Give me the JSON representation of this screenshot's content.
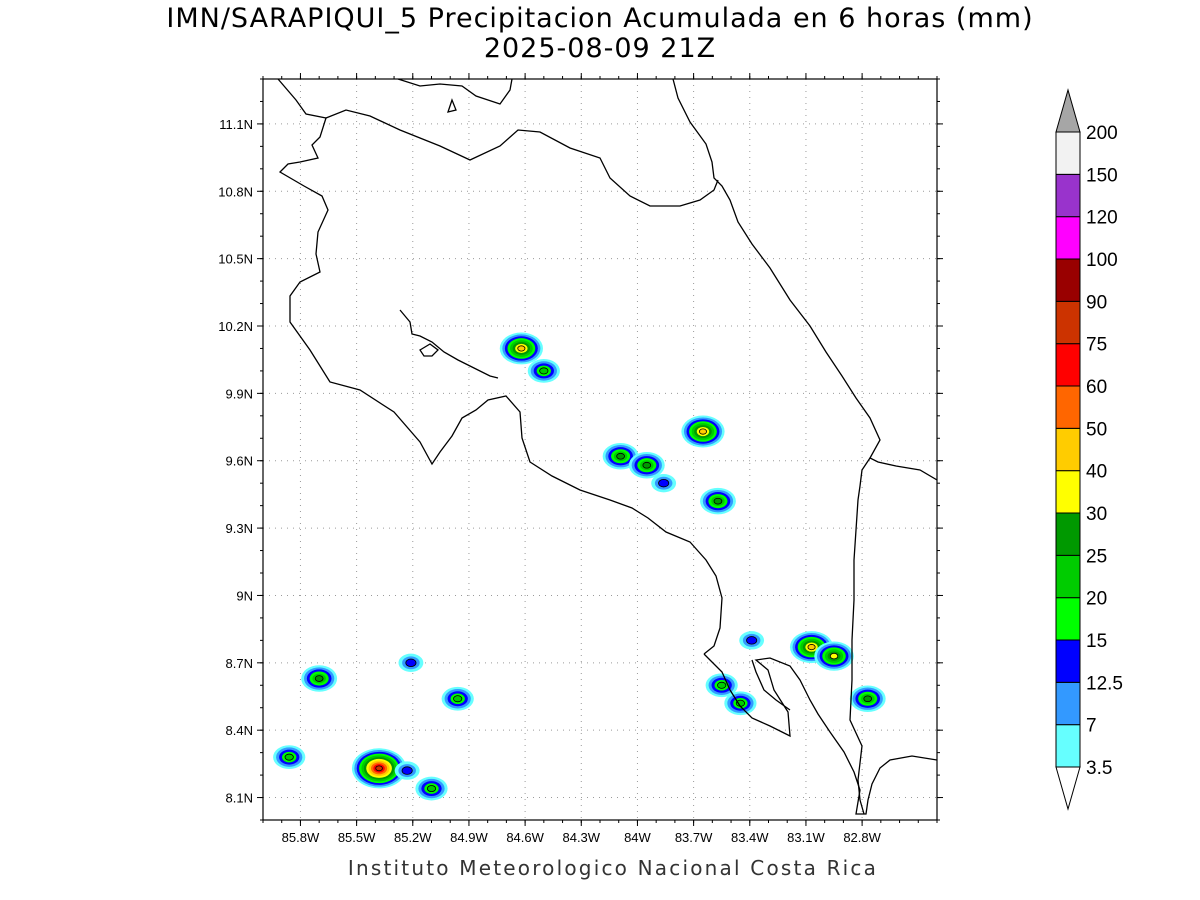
{
  "title": {
    "line1": "IMN/SARAPIQUI_5 Precipitacion Acumulada en 6 horas (mm)",
    "line2": "2025-08-09 21Z"
  },
  "footer": "Instituto Meteorologico Nacional Costa Rica",
  "map": {
    "lon_range": [
      -86.0,
      -82.4
    ],
    "lat_range": [
      8.0,
      11.3
    ],
    "lat_ticks": [
      {
        "value": 11.1,
        "label": "11.1N"
      },
      {
        "value": 10.8,
        "label": "10.8N"
      },
      {
        "value": 10.5,
        "label": "10.5N"
      },
      {
        "value": 10.2,
        "label": "10.2N"
      },
      {
        "value": 9.9,
        "label": "9.9N"
      },
      {
        "value": 9.6,
        "label": "9.6N"
      },
      {
        "value": 9.3,
        "label": "9.3N"
      },
      {
        "value": 9.0,
        "label": "9N"
      },
      {
        "value": 8.7,
        "label": "8.7N"
      },
      {
        "value": 8.4,
        "label": "8.4N"
      },
      {
        "value": 8.1,
        "label": "8.1N"
      }
    ],
    "lon_ticks": [
      {
        "value": -85.8,
        "label": "85.8W"
      },
      {
        "value": -85.5,
        "label": "85.5W"
      },
      {
        "value": -85.2,
        "label": "85.2W"
      },
      {
        "value": -84.9,
        "label": "84.9W"
      },
      {
        "value": -84.6,
        "label": "84.6W"
      },
      {
        "value": -84.3,
        "label": "84.3W"
      },
      {
        "value": -84.0,
        "label": "84W"
      },
      {
        "value": -83.7,
        "label": "83.7W"
      },
      {
        "value": -83.4,
        "label": "83.4W"
      },
      {
        "value": -83.1,
        "label": "83.1W"
      },
      {
        "value": -82.8,
        "label": "82.8W"
      }
    ],
    "grid": true,
    "precip_cells": [
      {
        "lon": -84.62,
        "lat": 10.1,
        "peak": 40
      },
      {
        "lon": -84.5,
        "lat": 10.0,
        "peak": 20
      },
      {
        "lon": -83.65,
        "lat": 9.73,
        "peak": 40
      },
      {
        "lon": -84.09,
        "lat": 9.62,
        "peak": 25
      },
      {
        "lon": -83.95,
        "lat": 9.58,
        "peak": 25
      },
      {
        "lon": -83.86,
        "lat": 9.5,
        "peak": 12.5
      },
      {
        "lon": -83.57,
        "lat": 9.42,
        "peak": 25
      },
      {
        "lon": -85.7,
        "lat": 8.63,
        "peak": 25
      },
      {
        "lon": -85.38,
        "lat": 8.23,
        "peak": 75
      },
      {
        "lon": -85.23,
        "lat": 8.22,
        "peak": 12.5
      },
      {
        "lon": -85.1,
        "lat": 8.14,
        "peak": 20
      },
      {
        "lon": -85.86,
        "lat": 8.28,
        "peak": 20
      },
      {
        "lon": -85.21,
        "lat": 8.7,
        "peak": 12.5
      },
      {
        "lon": -84.96,
        "lat": 8.54,
        "peak": 20
      },
      {
        "lon": -83.07,
        "lat": 8.77,
        "peak": 40
      },
      {
        "lon": -82.95,
        "lat": 8.73,
        "peak": 30
      },
      {
        "lon": -82.77,
        "lat": 8.54,
        "peak": 25
      },
      {
        "lon": -83.55,
        "lat": 8.6,
        "peak": 20
      },
      {
        "lon": -83.45,
        "lat": 8.52,
        "peak": 20
      },
      {
        "lon": -83.39,
        "lat": 8.8,
        "peak": 12.5
      }
    ]
  },
  "colorbar": {
    "levels": [
      "3.5",
      "7",
      "12.5",
      "15",
      "20",
      "25",
      "30",
      "40",
      "50",
      "60",
      "75",
      "90",
      "100",
      "120",
      "150",
      "200"
    ],
    "colors": [
      "#66ffff",
      "#3399ff",
      "#0000ff",
      "#00ff00",
      "#00cc00",
      "#009900",
      "#ffff00",
      "#ffcc00",
      "#ff6600",
      "#ff0000",
      "#cc3300",
      "#990000",
      "#ff00ff",
      "#9933cc",
      "#f2f2f2"
    ],
    "over_color": "#a6a6a6",
    "under_color": "#ffffff"
  }
}
